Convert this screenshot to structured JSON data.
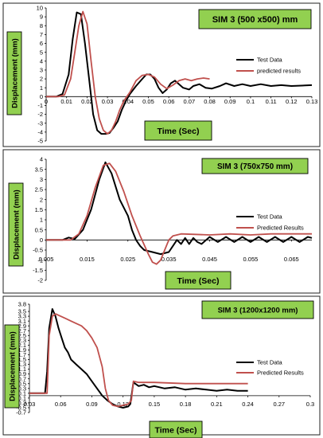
{
  "chart_data": [
    {
      "type": "line",
      "title": "SIM 3 (500 x500) mm",
      "xlabel": "Time  (Sec)",
      "ylabel": "Displacement   (mm)",
      "xlim": [
        0,
        0.13
      ],
      "ylim": [
        -5,
        10
      ],
      "x_ticks": [
        "0",
        "0.01",
        "0.02",
        "0.03",
        "0.04",
        "0.05",
        "0.06",
        "0.07",
        "0.08",
        "0.09",
        "0.1",
        "0.11",
        "0.12",
        "0.13"
      ],
      "y_ticks": [
        "-5",
        "-4",
        "-3",
        "-2",
        "-1",
        "0",
        "1",
        "2",
        "3",
        "4",
        "5",
        "6",
        "7",
        "8",
        "9",
        "10"
      ],
      "legend_position": "right",
      "series": [
        {
          "name": "Test Data",
          "color": "#000000",
          "points": [
            [
              0,
              0
            ],
            [
              0.005,
              0
            ],
            [
              0.008,
              0.3
            ],
            [
              0.011,
              2.5
            ],
            [
              0.013,
              6.5
            ],
            [
              0.015,
              9.5
            ],
            [
              0.017,
              9.3
            ],
            [
              0.019,
              6
            ],
            [
              0.021,
              2
            ],
            [
              0.023,
              -2
            ],
            [
              0.025,
              -3.8
            ],
            [
              0.027,
              -4.2
            ],
            [
              0.029,
              -4.2
            ],
            [
              0.031,
              -4.1
            ],
            [
              0.033,
              -3.5
            ],
            [
              0.035,
              -2.8
            ],
            [
              0.037,
              -1.5
            ],
            [
              0.039,
              -0.5
            ],
            [
              0.041,
              0.3
            ],
            [
              0.044,
              1.2
            ],
            [
              0.047,
              2
            ],
            [
              0.049,
              2.5
            ],
            [
              0.051,
              2.5
            ],
            [
              0.053,
              2
            ],
            [
              0.055,
              1
            ],
            [
              0.057,
              0.4
            ],
            [
              0.059,
              0.8
            ],
            [
              0.061,
              1.5
            ],
            [
              0.063,
              1.8
            ],
            [
              0.065,
              1.4
            ],
            [
              0.067,
              1
            ],
            [
              0.07,
              0.8
            ],
            [
              0.072,
              1.2
            ],
            [
              0.075,
              1.4
            ],
            [
              0.078,
              1
            ],
            [
              0.081,
              0.9
            ],
            [
              0.085,
              1.2
            ],
            [
              0.088,
              1.5
            ],
            [
              0.092,
              1.2
            ],
            [
              0.096,
              1.4
            ],
            [
              0.1,
              1.2
            ],
            [
              0.105,
              1.4
            ],
            [
              0.11,
              1.2
            ],
            [
              0.115,
              1.3
            ],
            [
              0.12,
              1.2
            ],
            [
              0.13,
              1.3
            ]
          ]
        },
        {
          "name": "predicted results",
          "color": "#c0504d",
          "points": [
            [
              0,
              0
            ],
            [
              0.006,
              0
            ],
            [
              0.009,
              0.2
            ],
            [
              0.012,
              2
            ],
            [
              0.014,
              5
            ],
            [
              0.016,
              8
            ],
            [
              0.018,
              9.6
            ],
            [
              0.02,
              8.2
            ],
            [
              0.022,
              4
            ],
            [
              0.024,
              0
            ],
            [
              0.026,
              -2.5
            ],
            [
              0.028,
              -3.8
            ],
            [
              0.03,
              -4.2
            ],
            [
              0.032,
              -3.8
            ],
            [
              0.034,
              -2.8
            ],
            [
              0.036,
              -1.5
            ],
            [
              0.038,
              -0.5
            ],
            [
              0.041,
              0.5
            ],
            [
              0.044,
              1.8
            ],
            [
              0.047,
              2.4
            ],
            [
              0.05,
              2.5
            ],
            [
              0.053,
              2.2
            ],
            [
              0.056,
              1.4
            ],
            [
              0.059,
              0.9
            ],
            [
              0.062,
              1.3
            ],
            [
              0.065,
              1.8
            ],
            [
              0.068,
              2
            ],
            [
              0.071,
              1.8
            ],
            [
              0.074,
              2
            ],
            [
              0.077,
              2.1
            ],
            [
              0.08,
              2
            ]
          ]
        }
      ]
    },
    {
      "type": "line",
      "title": "SIM 3 (750x750 mm)",
      "xlabel": "Time  (Sec)",
      "ylabel": "Displacement   (mm)",
      "xlim": [
        0.005,
        0.07
      ],
      "ylim": [
        -2,
        4
      ],
      "x_ticks": [
        "0.005",
        "0.015",
        "0.025",
        "0.035",
        "0.045",
        "0.055",
        "0.065"
      ],
      "y_ticks": [
        "-2",
        "-1.5",
        "-1",
        "-0.5",
        "0",
        "0.5",
        "1",
        "1.5",
        "2",
        "2.5",
        "3",
        "3.5",
        "4"
      ],
      "legend_position": "right",
      "series": [
        {
          "name": "Test Data",
          "color": "#000000",
          "points": [
            [
              0.005,
              0
            ],
            [
              0.009,
              0
            ],
            [
              0.0105,
              0.12
            ],
            [
              0.012,
              0.05
            ],
            [
              0.014,
              0.5
            ],
            [
              0.016,
              1.5
            ],
            [
              0.018,
              3
            ],
            [
              0.0195,
              3.85
            ],
            [
              0.021,
              3.3
            ],
            [
              0.023,
              2
            ],
            [
              0.025,
              1.2
            ],
            [
              0.026,
              0.5
            ],
            [
              0.027,
              0
            ],
            [
              0.028,
              -0.3
            ],
            [
              0.029,
              -0.5
            ],
            [
              0.031,
              -0.6
            ],
            [
              0.033,
              -0.7
            ],
            [
              0.035,
              -0.6
            ],
            [
              0.036,
              -0.3
            ],
            [
              0.037,
              0
            ],
            [
              0.038,
              -0.2
            ],
            [
              0.039,
              0.1
            ],
            [
              0.04,
              -0.2
            ],
            [
              0.041,
              0.1
            ],
            [
              0.042,
              -0.1
            ],
            [
              0.043,
              -0.2
            ],
            [
              0.045,
              0.15
            ],
            [
              0.047,
              -0.1
            ],
            [
              0.049,
              0.15
            ],
            [
              0.051,
              -0.1
            ],
            [
              0.053,
              0.15
            ],
            [
              0.055,
              -0.1
            ],
            [
              0.057,
              0.15
            ],
            [
              0.059,
              -0.1
            ],
            [
              0.061,
              0.15
            ],
            [
              0.063,
              -0.1
            ],
            [
              0.065,
              0.15
            ],
            [
              0.067,
              -0.1
            ],
            [
              0.069,
              0.15
            ],
            [
              0.07,
              0.1
            ]
          ]
        },
        {
          "name": "Predicted Results",
          "color": "#c0504d",
          "points": [
            [
              0.005,
              0
            ],
            [
              0.011,
              0
            ],
            [
              0.013,
              0.3
            ],
            [
              0.015,
              1.2
            ],
            [
              0.017,
              2.6
            ],
            [
              0.019,
              3.7
            ],
            [
              0.0205,
              3.8
            ],
            [
              0.022,
              3.4
            ],
            [
              0.024,
              2.4
            ],
            [
              0.026,
              1.2
            ],
            [
              0.028,
              0.2
            ],
            [
              0.03,
              -0.7
            ],
            [
              0.031,
              -1.1
            ],
            [
              0.032,
              -1.2
            ],
            [
              0.033,
              -1
            ],
            [
              0.034,
              -0.5
            ],
            [
              0.035,
              0
            ],
            [
              0.036,
              0.2
            ],
            [
              0.038,
              0.3
            ],
            [
              0.045,
              0.25
            ],
            [
              0.05,
              0.3
            ],
            [
              0.055,
              0.25
            ],
            [
              0.06,
              0.3
            ],
            [
              0.065,
              0.3
            ],
            [
              0.07,
              0.3
            ]
          ]
        }
      ]
    },
    {
      "type": "line",
      "title": "SIM 3 (1200x1200 mm)",
      "xlabel": "Time (Sec)",
      "ylabel": "Displacement   (mm)",
      "xlim": [
        0.03,
        0.3
      ],
      "ylim": [
        -0.7,
        3.8
      ],
      "x_ticks": [
        "0.03",
        "0.06",
        "0.09",
        "0.12",
        "0.15",
        "0.18",
        "0.21",
        "0.24",
        "0.27",
        "0.3"
      ],
      "y_ticks": [
        "-0.7",
        "-0.5",
        "-0.3",
        "-0.1",
        "0.1",
        "0.3",
        "0.5",
        "0.7",
        "0.9",
        "1.1",
        "1.3",
        "1.5",
        "1.7",
        "1.9",
        "2.1",
        "2.3",
        "2.5",
        "2.7",
        "2.9",
        "3.1",
        "3.3",
        "3.5",
        "3.8"
      ],
      "legend_position": "right",
      "series": [
        {
          "name": "Test Data",
          "color": "#000000",
          "points": [
            [
              0.03,
              0.1
            ],
            [
              0.045,
              0.1
            ],
            [
              0.047,
              1
            ],
            [
              0.049,
              2.8
            ],
            [
              0.052,
              3.6
            ],
            [
              0.055,
              3.3
            ],
            [
              0.058,
              2.8
            ],
            [
              0.061,
              2.4
            ],
            [
              0.064,
              2
            ],
            [
              0.067,
              1.8
            ],
            [
              0.07,
              1.5
            ],
            [
              0.075,
              1.3
            ],
            [
              0.08,
              1.1
            ],
            [
              0.085,
              0.9
            ],
            [
              0.09,
              0.6
            ],
            [
              0.095,
              0.3
            ],
            [
              0.1,
              0
            ],
            [
              0.105,
              -0.2
            ],
            [
              0.11,
              -0.35
            ],
            [
              0.115,
              -0.45
            ],
            [
              0.12,
              -0.5
            ],
            [
              0.125,
              -0.45
            ],
            [
              0.127,
              -0.35
            ],
            [
              0.13,
              0.55
            ],
            [
              0.135,
              0.4
            ],
            [
              0.14,
              0.45
            ],
            [
              0.145,
              0.35
            ],
            [
              0.15,
              0.4
            ],
            [
              0.16,
              0.3
            ],
            [
              0.17,
              0.35
            ],
            [
              0.18,
              0.25
            ],
            [
              0.19,
              0.3
            ],
            [
              0.2,
              0.25
            ],
            [
              0.21,
              0.2
            ],
            [
              0.22,
              0.25
            ],
            [
              0.23,
              0.2
            ],
            [
              0.24,
              0.2
            ]
          ]
        },
        {
          "name": "Predicted Results",
          "color": "#c0504d",
          "points": [
            [
              0.03,
              0.1
            ],
            [
              0.047,
              0.1
            ],
            [
              0.049,
              2.5
            ],
            [
              0.052,
              3.3
            ],
            [
              0.055,
              3.4
            ],
            [
              0.06,
              3.3
            ],
            [
              0.065,
              3.2
            ],
            [
              0.07,
              3.1
            ],
            [
              0.075,
              3
            ],
            [
              0.08,
              2.9
            ],
            [
              0.085,
              2.7
            ],
            [
              0.09,
              2.4
            ],
            [
              0.095,
              2
            ],
            [
              0.1,
              1.2
            ],
            [
              0.103,
              0.3
            ],
            [
              0.106,
              -0.2
            ],
            [
              0.11,
              -0.4
            ],
            [
              0.115,
              -0.45
            ],
            [
              0.12,
              -0.4
            ],
            [
              0.125,
              -0.35
            ],
            [
              0.128,
              -0.2
            ],
            [
              0.13,
              0.6
            ],
            [
              0.135,
              0.55
            ],
            [
              0.15,
              0.55
            ],
            [
              0.18,
              0.5
            ],
            [
              0.21,
              0.5
            ],
            [
              0.24,
              0.5
            ]
          ]
        }
      ]
    }
  ]
}
